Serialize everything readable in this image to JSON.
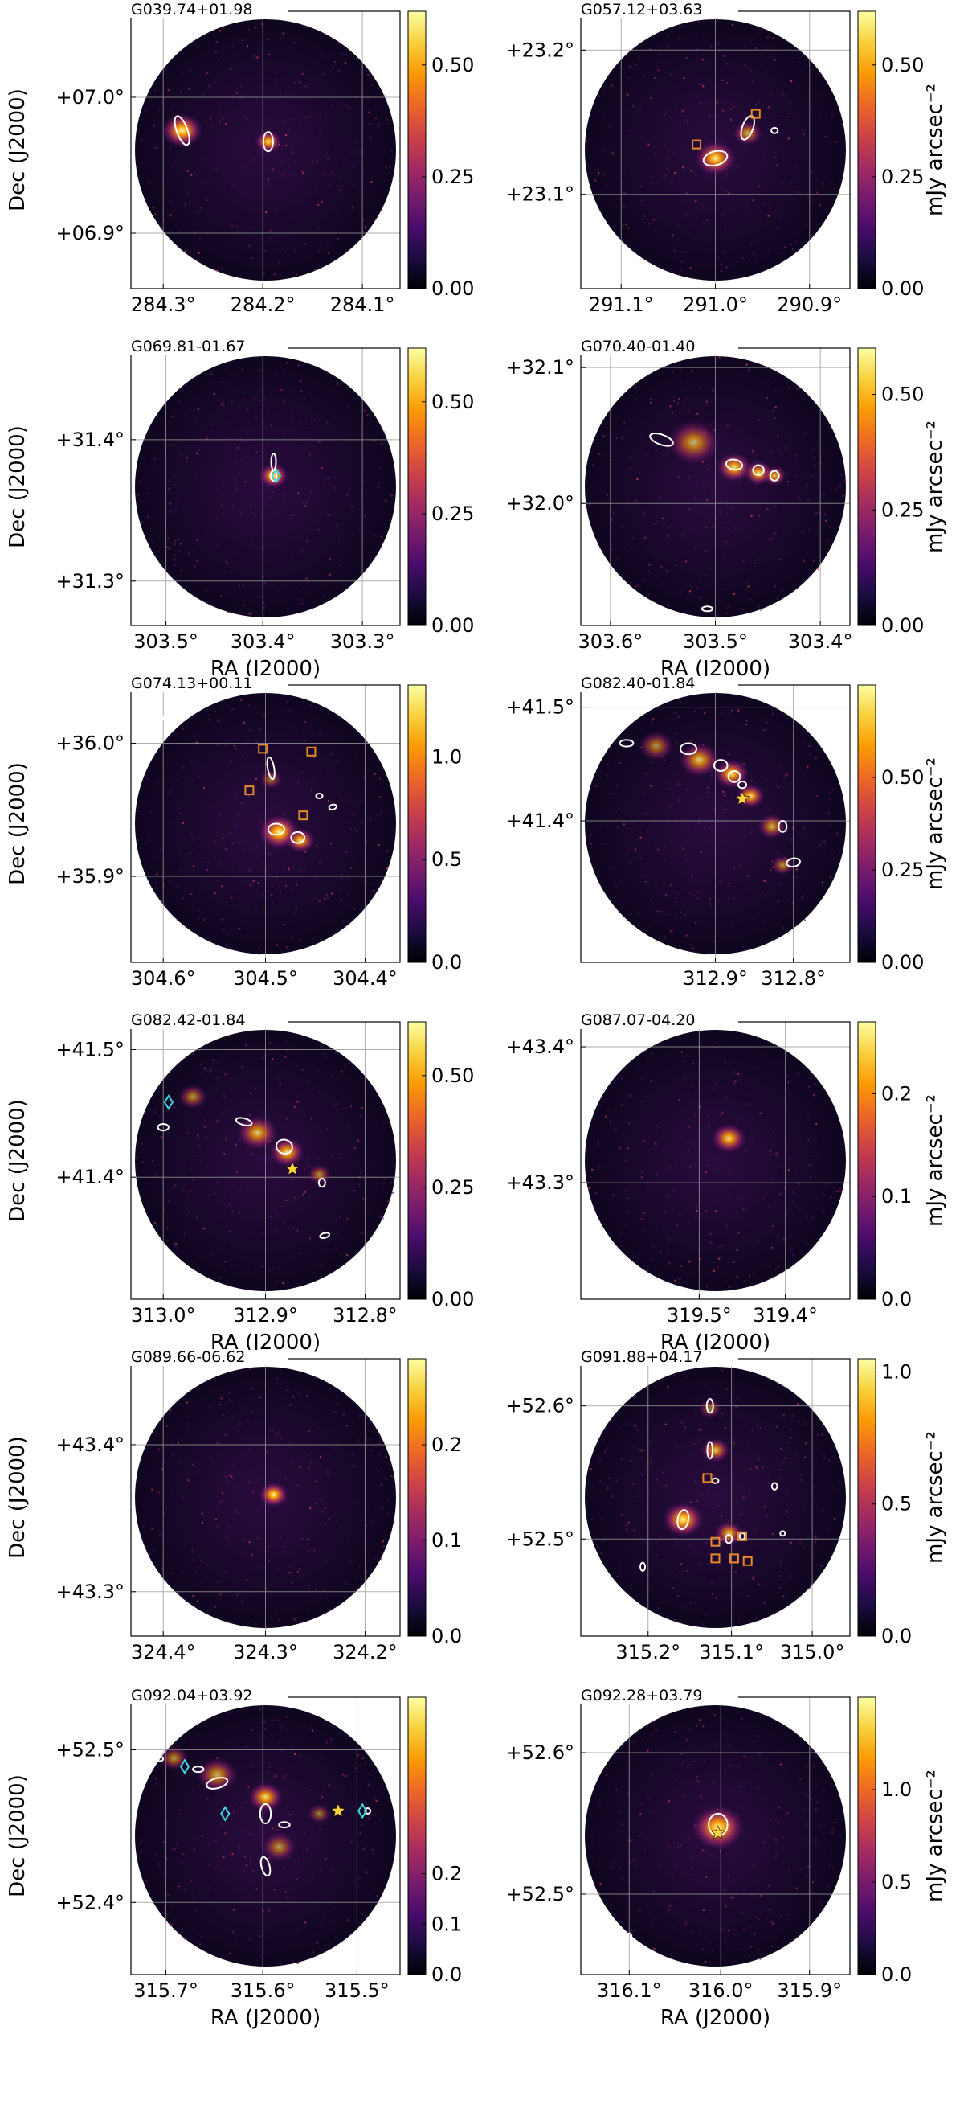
{
  "figure": {
    "axis_labels": {
      "x": "RA (J2000)",
      "y": "Dec (J2000)",
      "colorbar": "mJy arcsec⁻²"
    },
    "colormap": [
      "#000004",
      "#1b0c41",
      "#4a0c6b",
      "#781c6d",
      "#a52c60",
      "#cf4446",
      "#ed6925",
      "#fb9b06",
      "#f7d13d",
      "#fcffa4"
    ],
    "marker_colors": {
      "ellipse": "#ffffff",
      "square": "#e8892a",
      "diamond": "#3fd7e0",
      "star": "#ffd43b"
    }
  },
  "chart_data": [
    {
      "type": "heatmap",
      "name": "G039.74+01.98",
      "x_ticks": [
        "284.3°",
        "284.2°",
        "284.1°"
      ],
      "y_ticks": [
        "+07.0°",
        "+06.9°"
      ],
      "colorbar_ticks": [
        "0.50",
        "0.25",
        "0.00"
      ],
      "colorbar_range": [
        0,
        0.62
      ],
      "show_xlabel": false,
      "show_ylabel": true,
      "show_cbar_label": false
    },
    {
      "type": "heatmap",
      "name": "G057.12+03.63",
      "x_ticks": [
        "291.1°",
        "291.0°",
        "290.9°"
      ],
      "y_ticks": [
        "+23.2°",
        "+23.1°"
      ],
      "colorbar_ticks": [
        "0.50",
        "0.25",
        "0.00"
      ],
      "colorbar_range": [
        0,
        0.62
      ],
      "show_xlabel": false,
      "show_ylabel": false,
      "show_cbar_label": true
    },
    {
      "type": "heatmap",
      "name": "G069.81-01.67",
      "x_ticks": [
        "303.5°",
        "303.4°",
        "303.3°"
      ],
      "y_ticks": [
        "+31.4°",
        "+31.3°"
      ],
      "colorbar_ticks": [
        "0.50",
        "0.25",
        "0.00"
      ],
      "colorbar_range": [
        0,
        0.62
      ],
      "show_xlabel": true,
      "show_ylabel": true,
      "show_cbar_label": false
    },
    {
      "type": "heatmap",
      "name": "G070.40-01.40",
      "x_ticks": [
        "303.6°",
        "303.5°",
        "303.4°"
      ],
      "y_ticks": [
        "+32.1°",
        "+32.0°"
      ],
      "colorbar_ticks": [
        "0.50",
        "0.25",
        "0.00"
      ],
      "colorbar_range": [
        0,
        0.6
      ],
      "show_xlabel": true,
      "show_ylabel": false,
      "show_cbar_label": true
    },
    {
      "type": "heatmap",
      "name": "G074.13+00.11",
      "x_ticks": [
        "304.6°",
        "304.5°",
        "304.4°"
      ],
      "y_ticks": [
        "+36.0°",
        "+35.9°"
      ],
      "colorbar_ticks": [
        "1.0",
        "0.5",
        "0.0"
      ],
      "colorbar_range": [
        0,
        1.35
      ],
      "show_xlabel": false,
      "show_ylabel": true,
      "show_cbar_label": false
    },
    {
      "type": "heatmap",
      "name": "G082.40-01.84",
      "x_ticks": [
        "312.9°",
        "312.8°"
      ],
      "y_ticks": [
        "+41.5°",
        "+41.4°"
      ],
      "colorbar_ticks": [
        "0.50",
        "0.25",
        "0.00"
      ],
      "colorbar_range": [
        0,
        0.75
      ],
      "show_xlabel": false,
      "show_ylabel": false,
      "show_cbar_label": true
    },
    {
      "type": "heatmap",
      "name": "G082.42-01.84",
      "x_ticks": [
        "313.0°",
        "312.9°",
        "312.8°"
      ],
      "y_ticks": [
        "+41.5°",
        "+41.4°"
      ],
      "colorbar_ticks": [
        "0.50",
        "0.25",
        "0.00"
      ],
      "colorbar_range": [
        0,
        0.62
      ],
      "show_xlabel": true,
      "show_ylabel": true,
      "show_cbar_label": false
    },
    {
      "type": "heatmap",
      "name": "G087.07-04.20",
      "x_ticks": [
        "319.5°",
        "319.4°"
      ],
      "y_ticks": [
        "+43.4°",
        "+43.3°"
      ],
      "colorbar_ticks": [
        "0.2",
        "0.1",
        "0.0"
      ],
      "colorbar_range": [
        0,
        0.27
      ],
      "show_xlabel": true,
      "show_ylabel": false,
      "show_cbar_label": true
    },
    {
      "type": "heatmap",
      "name": "G089.66-06.62",
      "x_ticks": [
        "324.4°",
        "324.3°",
        "324.2°"
      ],
      "y_ticks": [
        "+43.4°",
        "+43.3°"
      ],
      "colorbar_ticks": [
        "0.2",
        "0.1",
        "0.0"
      ],
      "colorbar_range": [
        0,
        0.29
      ],
      "show_xlabel": false,
      "show_ylabel": true,
      "show_cbar_label": false
    },
    {
      "type": "heatmap",
      "name": "G091.88+04.17",
      "x_ticks": [
        "315.2°",
        "315.1°",
        "315.0°"
      ],
      "y_ticks": [
        "+52.6°",
        "+52.5°"
      ],
      "colorbar_ticks": [
        "1.0",
        "0.5",
        "0.0"
      ],
      "colorbar_range": [
        0,
        1.05
      ],
      "show_xlabel": false,
      "show_ylabel": false,
      "show_cbar_label": true
    },
    {
      "type": "heatmap",
      "name": "G092.04+03.92",
      "x_ticks": [
        "315.7°",
        "315.6°",
        "315.5°"
      ],
      "y_ticks": [
        "+52.5°",
        "+52.4°"
      ],
      "colorbar_ticks": [
        "0.2",
        "0.1",
        "0.0"
      ],
      "colorbar_range": [
        0,
        0.55
      ],
      "show_xlabel": true,
      "show_ylabel": true,
      "show_cbar_label": false
    },
    {
      "type": "heatmap",
      "name": "G092.28+03.79",
      "x_ticks": [
        "316.1°",
        "316.0°",
        "315.9°"
      ],
      "y_ticks": [
        "+52.6°",
        "+52.5°"
      ],
      "colorbar_ticks": [
        "1.0",
        "0.5",
        "0.0"
      ],
      "colorbar_range": [
        0,
        1.5
      ],
      "show_xlabel": true,
      "show_ylabel": false,
      "show_cbar_label": true
    }
  ]
}
